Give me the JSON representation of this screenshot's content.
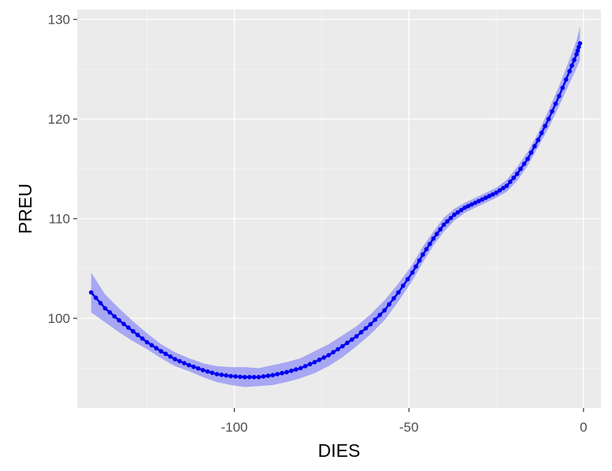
{
  "chart_data": {
    "type": "line",
    "title": "",
    "xlabel": "DIES",
    "ylabel": "PREU",
    "xlim": [
      -145,
      5
    ],
    "ylim": [
      91,
      131
    ],
    "x_ticks": [
      -100,
      -50,
      0
    ],
    "x_tick_labels": [
      "-100",
      "-50",
      "0"
    ],
    "y_ticks": [
      100,
      110,
      120,
      130
    ],
    "y_tick_labels": [
      "100",
      "110",
      "120",
      "130"
    ],
    "grid": true,
    "legend": "none",
    "series": [
      {
        "x": [
          -141,
          -137,
          -133,
          -129,
          -125,
          -121,
          -117,
          -113,
          -109,
          -105,
          -101,
          -97,
          -93,
          -89,
          -85,
          -81,
          -77,
          -73,
          -69,
          -65,
          -61,
          -57,
          -53,
          -49,
          -46,
          -43,
          -40,
          -37,
          -34,
          -31,
          -28,
          -25,
          -22,
          -19,
          -16,
          -13,
          -10,
          -7,
          -4,
          -2,
          -1
        ],
        "y": [
          102.6,
          101.0,
          99.8,
          98.7,
          97.6,
          96.7,
          95.9,
          95.3,
          94.8,
          94.4,
          94.2,
          94.1,
          94.1,
          94.3,
          94.6,
          95.0,
          95.6,
          96.3,
          97.2,
          98.2,
          99.4,
          100.8,
          102.6,
          104.6,
          106.4,
          108.0,
          109.4,
          110.4,
          111.1,
          111.6,
          112.1,
          112.6,
          113.3,
          114.5,
          116.0,
          117.9,
          120.0,
          122.3,
          124.8,
          126.5,
          127.6
        ],
        "ci_lower": [
          100.6,
          99.6,
          98.6,
          97.7,
          96.9,
          96.0,
          95.2,
          94.7,
          94.1,
          93.6,
          93.3,
          93.1,
          93.2,
          93.3,
          93.6,
          94.0,
          94.5,
          95.2,
          96.1,
          97.2,
          98.4,
          99.8,
          101.7,
          103.8,
          105.6,
          107.3,
          108.7,
          109.8,
          110.6,
          111.1,
          111.6,
          112.1,
          112.7,
          113.8,
          115.3,
          117.2,
          119.1,
          121.3,
          123.6,
          125.1,
          125.9
        ],
        "ci_upper": [
          104.6,
          102.4,
          101.0,
          99.7,
          98.5,
          97.4,
          96.6,
          96.0,
          95.5,
          95.2,
          95.1,
          95.1,
          95.0,
          95.3,
          95.6,
          96.0,
          96.7,
          97.4,
          98.3,
          99.2,
          100.4,
          101.8,
          103.5,
          105.4,
          107.2,
          108.7,
          110.1,
          111.0,
          111.6,
          112.1,
          112.6,
          113.1,
          113.9,
          115.2,
          116.7,
          118.6,
          120.9,
          123.3,
          126.0,
          127.9,
          129.3
        ]
      }
    ],
    "colors": {
      "panel": "#ebebeb",
      "grid_major": "#ffffff",
      "grid_minor": "#f5f5f5",
      "line": "#0000ee",
      "ribbon": "#a0a0f4",
      "tick": "#333333"
    }
  }
}
